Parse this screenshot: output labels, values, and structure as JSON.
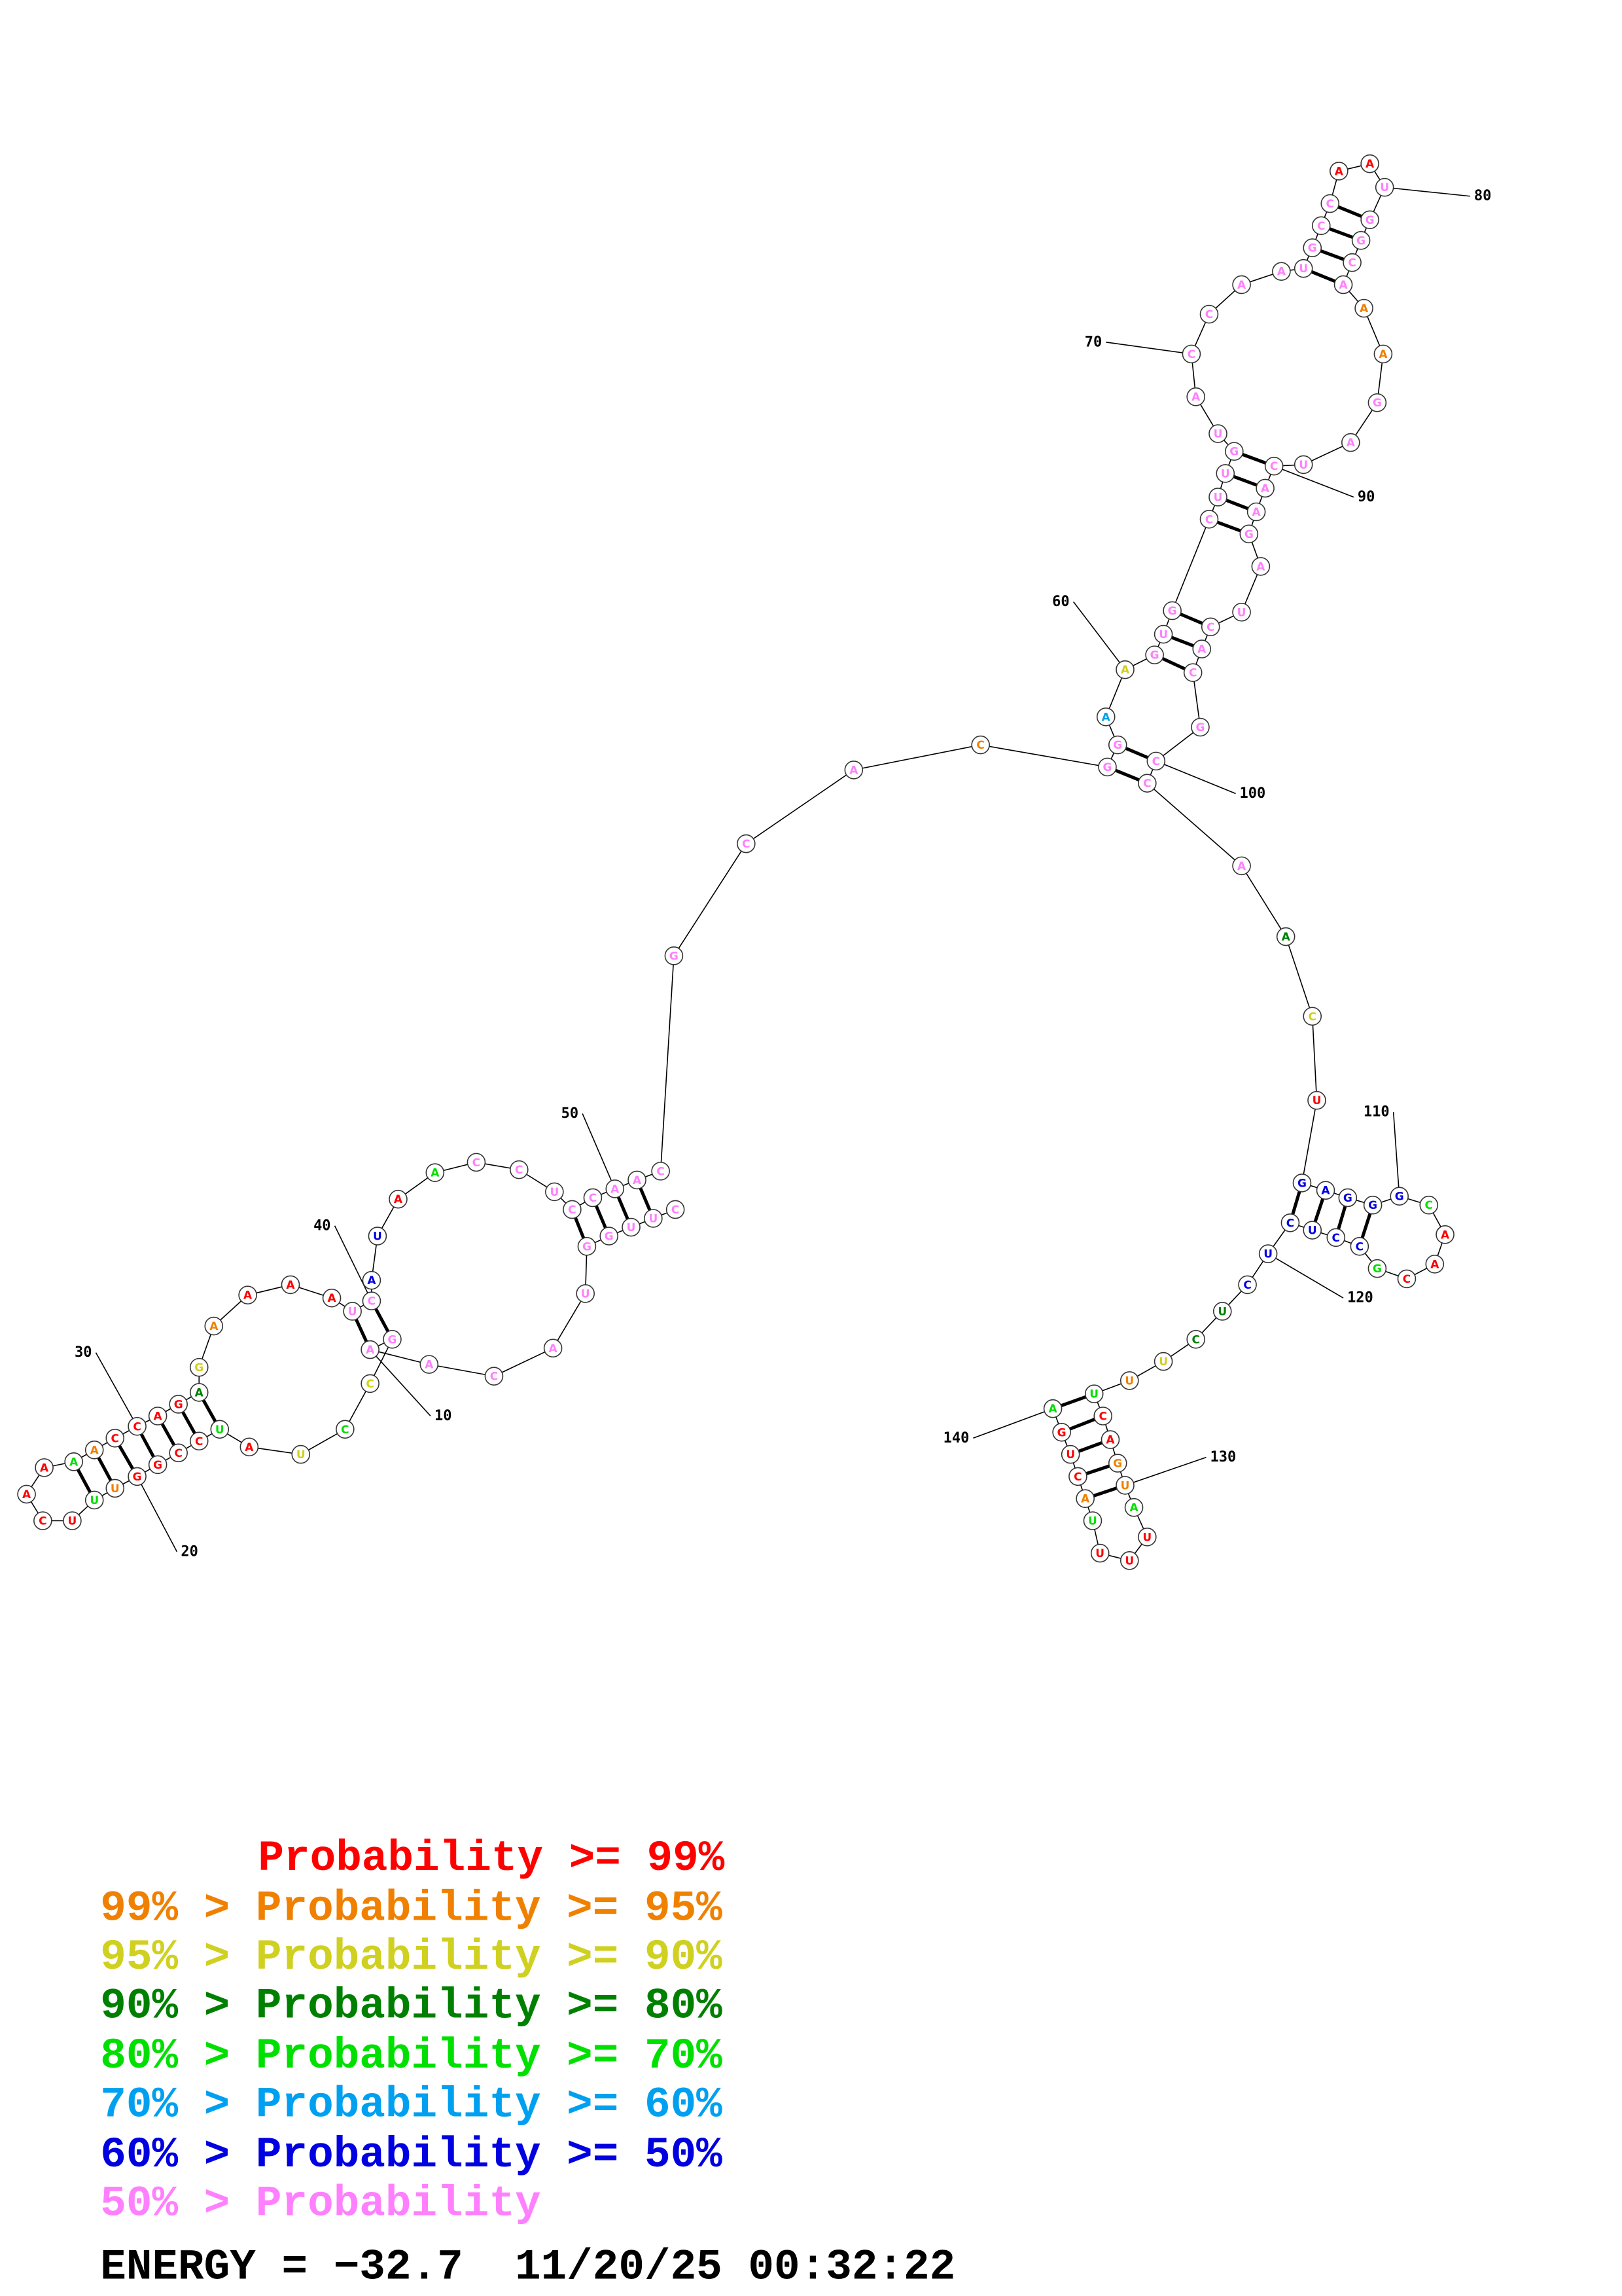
{
  "sequence": "CUUGGUACAAGCCUAUCCGGUUUCAAAACCAGAGAAAAUCAUAACCUCCAACGCACGGAAGUGCUUGUACCAAUGCCAAUGGCAAAGAUCAAGAUCACGCCAACUGAGGGCAACGCCUCUCUCUUUCAGUAUUUUACUGA",
  "probability_levels": [
    7,
    7,
    7,
    7,
    7,
    7,
    7,
    7,
    7,
    7,
    7,
    2,
    4,
    2,
    0,
    4,
    0,
    0,
    0,
    0,
    1,
    4,
    0,
    0,
    0,
    0,
    4,
    1,
    0,
    0,
    0,
    0,
    3,
    2,
    1,
    0,
    0,
    0,
    7,
    7,
    6,
    6,
    0,
    4,
    7,
    7,
    7,
    7,
    7,
    7,
    7,
    7,
    7,
    7,
    7,
    1,
    7,
    7,
    5,
    2,
    7,
    7,
    7,
    7,
    7,
    7,
    7,
    7,
    7,
    7,
    7,
    7,
    7,
    7,
    7,
    7,
    7,
    0,
    0,
    7,
    7,
    7,
    7,
    7,
    1,
    1,
    7,
    7,
    7,
    7,
    7,
    7,
    7,
    7,
    7,
    7,
    7,
    7,
    7,
    7,
    7,
    7,
    3,
    2,
    0,
    6,
    6,
    6,
    6,
    6,
    4,
    0,
    0,
    0,
    4,
    6,
    6,
    6,
    6,
    6,
    6,
    3,
    3,
    2,
    1,
    4,
    0,
    0,
    1,
    1,
    4,
    0,
    0,
    0,
    4,
    1,
    0,
    0,
    0,
    4
  ],
  "position_labels": [
    10,
    20,
    30,
    40,
    50,
    60,
    70,
    80,
    90,
    100,
    110,
    120,
    130,
    140
  ],
  "legend": [
    {
      "text": "Probability >= 99%",
      "color": "#ff0000"
    },
    {
      "text": "99% > Probability >= 95%",
      "color": "#f08000"
    },
    {
      "text": "95% > Probability >= 90%",
      "color": "#d0d020"
    },
    {
      "text": "90% > Probability >= 80%",
      "color": "#008000"
    },
    {
      "text": "80% > Probability >= 70%",
      "color": "#00e000"
    },
    {
      "text": "70% > Probability >= 60%",
      "color": "#00a0f0"
    },
    {
      "text": "60% > Probability >= 50%",
      "color": "#0000e0"
    },
    {
      "text": "50% > Probability",
      "color": "#ff80ff"
    }
  ],
  "energy": "ENERGY = −32.7  11/20/25 00:32:22"
}
